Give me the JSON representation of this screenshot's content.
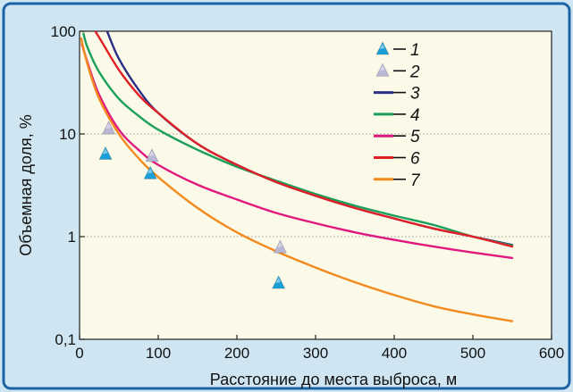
{
  "chart_data": {
    "type": "scatter+line",
    "title": "",
    "xlabel": "Расстояние до места выброса, м",
    "ylabel": "Объемная доля, %",
    "xlim": [
      0,
      600
    ],
    "ylim": [
      0.1,
      100
    ],
    "yscale": "log",
    "x_ticks": [
      0,
      100,
      200,
      300,
      400,
      500,
      600
    ],
    "x_tick_labels": [
      "0",
      "100",
      "200",
      "300",
      "400",
      "500",
      "600"
    ],
    "y_ticks": [
      0.1,
      1,
      10,
      100
    ],
    "y_tick_labels": [
      "0,1",
      "1",
      "10",
      "100"
    ],
    "grid": "horizontal-dotted",
    "legend_position": "top-right",
    "series": [
      {
        "name": "1",
        "kind": "points",
        "marker": "triangle",
        "color": "#1a9fd8",
        "x": [
          33,
          90,
          253
        ],
        "y": [
          6.5,
          4.2,
          0.36
        ]
      },
      {
        "name": "2",
        "kind": "points",
        "marker": "triangle",
        "color": "#b9b6d6",
        "x": [
          37,
          92,
          255
        ],
        "y": [
          11.5,
          6.2,
          0.8
        ]
      },
      {
        "name": "3",
        "kind": "line",
        "color": "#2b2f86",
        "x": [
          35,
          50,
          75,
          100,
          150,
          200,
          250,
          300,
          350,
          400,
          450,
          500,
          550
        ],
        "y": [
          100,
          54,
          27,
          16,
          8,
          5,
          3.4,
          2.5,
          1.9,
          1.5,
          1.2,
          1.0,
          0.83
        ]
      },
      {
        "name": "4",
        "kind": "line",
        "color": "#1aa05a",
        "x": [
          5,
          10,
          25,
          50,
          75,
          100,
          150,
          200,
          250,
          300,
          350,
          400,
          450,
          500,
          550
        ],
        "y": [
          95,
          70,
          40,
          22,
          15,
          11,
          7,
          4.8,
          3.5,
          2.6,
          2.0,
          1.6,
          1.3,
          1.0,
          0.82
        ]
      },
      {
        "name": "5",
        "kind": "line",
        "color": "#e0197e",
        "x": [
          3,
          10,
          25,
          50,
          75,
          100,
          150,
          200,
          250,
          300,
          350,
          400,
          450,
          500,
          550
        ],
        "y": [
          75,
          50,
          24,
          11,
          7,
          5,
          3.2,
          2.3,
          1.7,
          1.35,
          1.1,
          0.93,
          0.8,
          0.7,
          0.62
        ]
      },
      {
        "name": "6",
        "kind": "line",
        "color": "#e11f26",
        "x": [
          20,
          30,
          50,
          75,
          100,
          150,
          200,
          250,
          300,
          350,
          400,
          450,
          500,
          550
        ],
        "y": [
          100,
          75,
          42,
          24,
          16,
          8,
          5,
          3.4,
          2.5,
          1.9,
          1.5,
          1.2,
          1.0,
          0.8
        ]
      },
      {
        "name": "7",
        "kind": "line",
        "color": "#f28a1e",
        "x": [
          2,
          10,
          25,
          50,
          75,
          100,
          150,
          200,
          250,
          300,
          350,
          400,
          450,
          500,
          550
        ],
        "y": [
          85,
          48,
          22,
          10,
          5.8,
          3.8,
          1.9,
          1.1,
          0.72,
          0.5,
          0.36,
          0.27,
          0.21,
          0.175,
          0.15
        ]
      }
    ]
  },
  "colors": {
    "background": "#cfe6f2",
    "plot_background": "#fbf9e7",
    "frame": "#1e63a6"
  }
}
